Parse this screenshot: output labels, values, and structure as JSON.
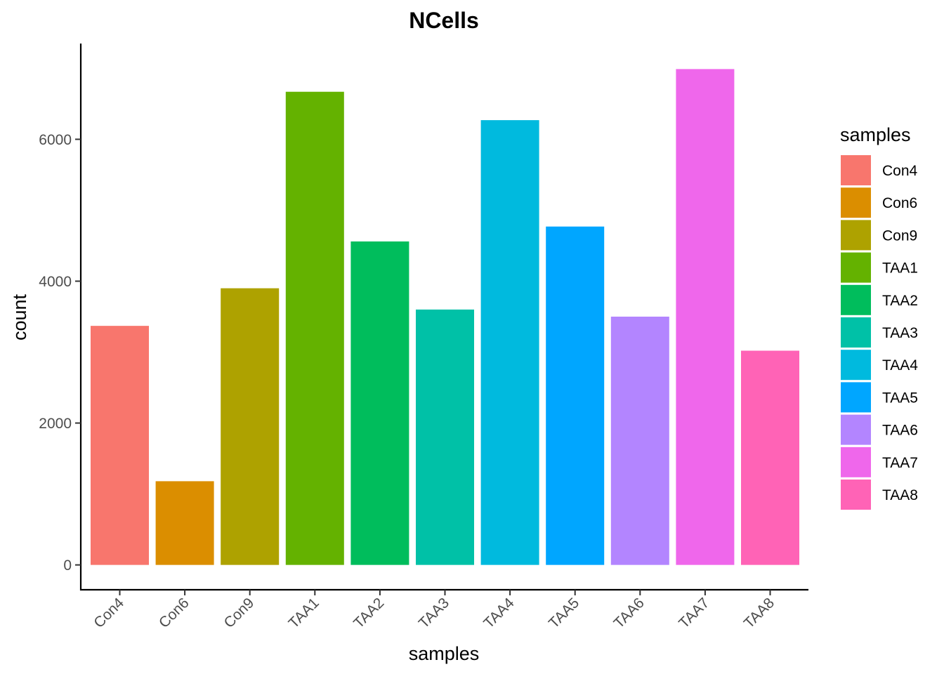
{
  "chart_data": {
    "type": "bar",
    "title": "NCells",
    "xlabel": "samples",
    "ylabel": "count",
    "categories": [
      "Con4",
      "Con6",
      "Con9",
      "TAA1",
      "TAA2",
      "TAA3",
      "TAA4",
      "TAA5",
      "TAA6",
      "TAA7",
      "TAA8"
    ],
    "values": [
      3370,
      1180,
      3900,
      6670,
      4560,
      3600,
      6270,
      4770,
      3500,
      6990,
      3020
    ],
    "colors": [
      "#F8766D",
      "#DB8E00",
      "#AEA200",
      "#64B200",
      "#00BD5C",
      "#00C1A7",
      "#00BADE",
      "#00A6FF",
      "#B385FF",
      "#EF67EB",
      "#FF63B6"
    ],
    "y_ticks": [
      0,
      2000,
      4000,
      6000
    ],
    "y_tick_labels": [
      "0",
      "2000",
      "4000",
      "6000"
    ],
    "ylim": [
      -350,
      7350
    ],
    "grid": false,
    "legend": {
      "title": "samples",
      "placement": "right",
      "entries": [
        "Con4",
        "Con6",
        "Con9",
        "TAA1",
        "TAA2",
        "TAA3",
        "TAA4",
        "TAA5",
        "TAA6",
        "TAA7",
        "TAA8"
      ]
    }
  }
}
